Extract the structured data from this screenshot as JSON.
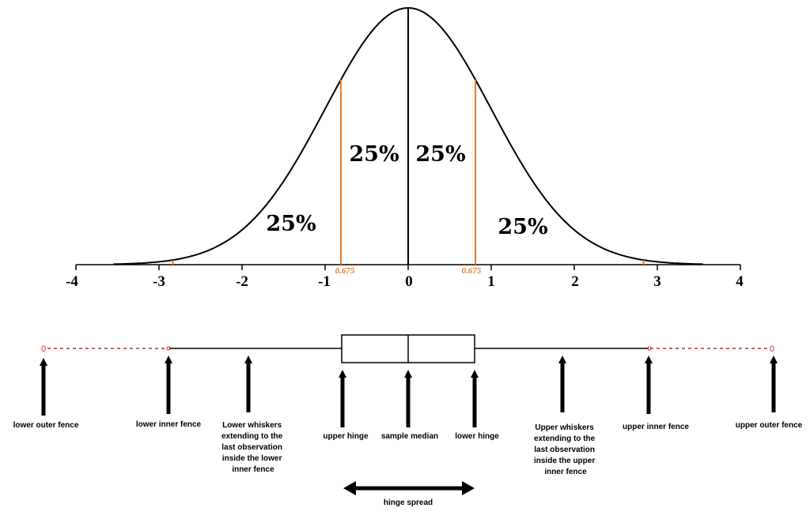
{
  "colors": {
    "curve": "#000000",
    "quartile_line": "#e87722",
    "fence_dashed": "#d62728",
    "text": "#000000"
  },
  "distribution": {
    "axis_ticks": [
      "-4",
      "-3",
      "-2",
      "-1",
      "0",
      "1",
      "2",
      "3",
      "4"
    ],
    "percent_labels": {
      "outer_left": "25%",
      "inner_left": "25%",
      "inner_right": "25%",
      "outer_right": "25%"
    },
    "quartile_labels": {
      "left": "0.675",
      "right": "0.675"
    },
    "quartile_z": 0.675,
    "fence_z": 2.698
  },
  "boxplot": {
    "outer_fence_marker_left": "0",
    "outer_fence_marker_right": "0",
    "hinge_spread_label": "hinge spread",
    "captions": {
      "lower_outer_fence": "lower outer fence",
      "lower_inner_fence": "lower inner fence",
      "lower_whiskers": [
        "Lower whiskers",
        "extending to the",
        "last observation",
        "inside the lower",
        "inner fence"
      ],
      "upper_hinge": "upper hinge",
      "sample_median": "sample median",
      "lower_hinge": "lower hinge",
      "upper_whiskers": [
        "Upper whiskers",
        "extending to the",
        "last observation",
        "inside the upper",
        "inner fence"
      ],
      "upper_inner_fence": "upper inner fence",
      "upper_outer_fence": "upper outer fence"
    }
  }
}
